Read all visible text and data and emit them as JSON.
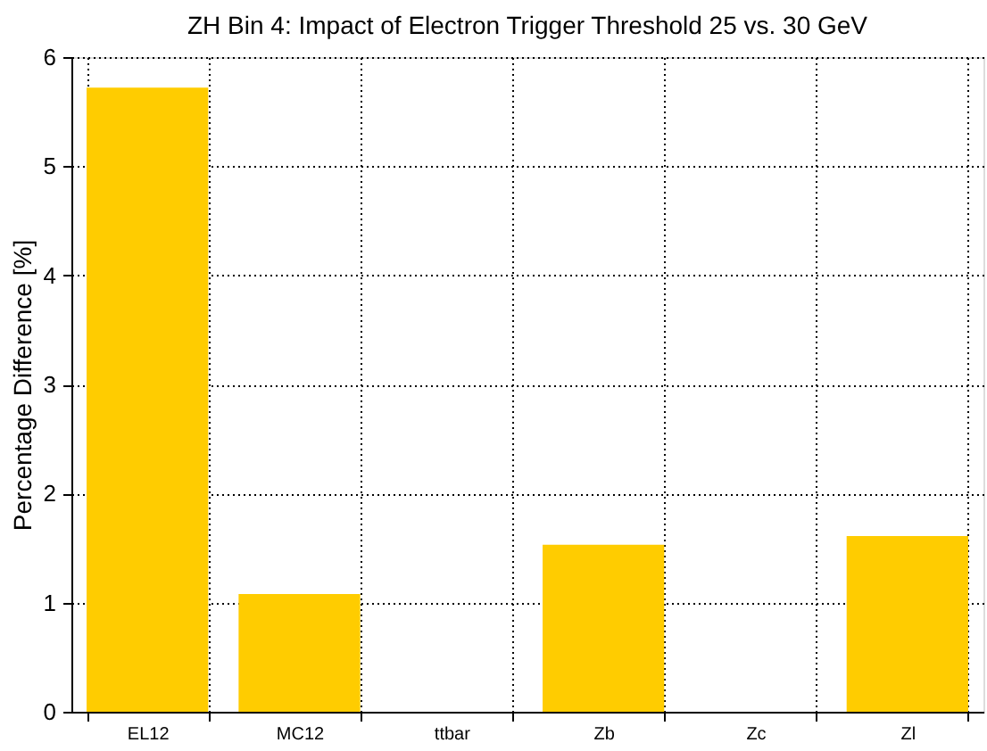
{
  "chart_data": {
    "type": "bar",
    "title": "ZH Bin 4: Impact of Electron Trigger Threshold 25 vs. 30 GeV",
    "ylabel": "Percentage Difference [%]",
    "categories": [
      "EL12",
      "MC12",
      "ttbar",
      "Zb",
      "Zc",
      "Zl"
    ],
    "values": [
      5.72,
      1.08,
      0,
      1.53,
      0,
      1.61
    ],
    "color": "#ffcc00",
    "ylim": [
      0,
      6
    ],
    "yticks": [
      0,
      1,
      2,
      3,
      4,
      5,
      6
    ],
    "grid": true
  }
}
